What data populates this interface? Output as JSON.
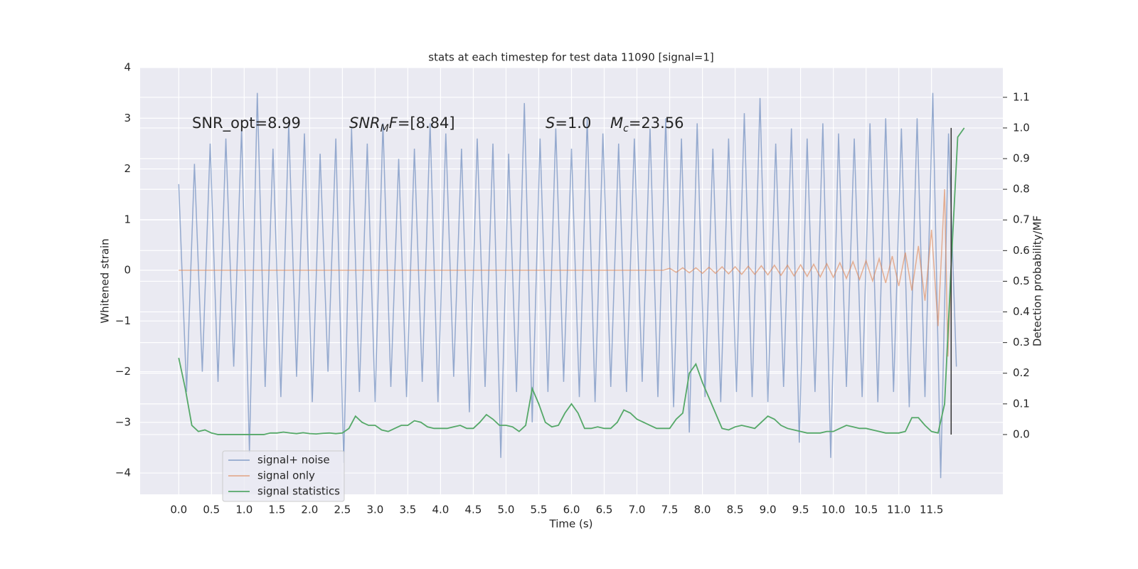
{
  "chart_data": {
    "type": "line",
    "title": "stats at each timestep for test data 11090 [signal=1]",
    "xlabel": "Time (s)",
    "ylabel": "Whitened strain",
    "y2label": "Detection probability/MF",
    "xlim": [
      -0.59,
      12.59
    ],
    "ylim": [
      -4.42,
      4
    ],
    "y2lim": [
      -0.195,
      1.197
    ],
    "xticks": [
      {
        "value": 0,
        "label": "0.0"
      },
      {
        "value": 0.5,
        "label": "0.5"
      },
      {
        "value": 1,
        "label": "1.0"
      },
      {
        "value": 1.5,
        "label": "1.5"
      },
      {
        "value": 2,
        "label": "2.0"
      },
      {
        "value": 2.5,
        "label": "2.5"
      },
      {
        "value": 3,
        "label": "3.0"
      },
      {
        "value": 3.5,
        "label": "3.5"
      },
      {
        "value": 4,
        "label": "4.0"
      },
      {
        "value": 4.5,
        "label": "4.5"
      },
      {
        "value": 5,
        "label": "5.0"
      },
      {
        "value": 5.5,
        "label": "5.5"
      },
      {
        "value": 6,
        "label": "6.0"
      },
      {
        "value": 6.5,
        "label": "6.5"
      },
      {
        "value": 7,
        "label": "7.0"
      },
      {
        "value": 7.5,
        "label": "7.5"
      },
      {
        "value": 8,
        "label": "8.0"
      },
      {
        "value": 8.5,
        "label": "8.5"
      },
      {
        "value": 9,
        "label": "9.0"
      },
      {
        "value": 9.5,
        "label": "9.5"
      },
      {
        "value": 10,
        "label": "10.0"
      },
      {
        "value": 10.5,
        "label": "10.5"
      },
      {
        "value": 11,
        "label": "11.0"
      },
      {
        "value": 11.5,
        "label": "11.5"
      }
    ],
    "yticks": [
      {
        "value": -4,
        "label": "−4"
      },
      {
        "value": -3,
        "label": "−3"
      },
      {
        "value": -2,
        "label": "−2"
      },
      {
        "value": -1,
        "label": "−1"
      },
      0,
      1,
      2,
      3,
      4
    ],
    "y2ticks": [
      {
        "value": 0,
        "label": "0.0"
      },
      {
        "value": 0.1,
        "label": "0.1"
      },
      {
        "value": 0.2,
        "label": "0.2"
      },
      {
        "value": 0.3,
        "label": "0.3"
      },
      {
        "value": 0.4,
        "label": "0.4"
      },
      {
        "value": 0.5,
        "label": "0.5"
      },
      {
        "value": 0.6,
        "label": "0.6"
      },
      {
        "value": 0.7,
        "label": "0.7"
      },
      {
        "value": 0.8,
        "label": "0.8"
      },
      {
        "value": 0.9,
        "label": "0.9"
      },
      {
        "value": 1.0,
        "label": "1.0"
      },
      {
        "value": 1.1,
        "label": "1.1"
      }
    ],
    "grid": true,
    "legend": "lower left",
    "annotations": [
      [
        "SNR_opt=8.99"
      ],
      [
        "SNR",
        "M",
        "F",
        "=[8.84]"
      ],
      [
        "S",
        "=1.0"
      ],
      [
        "M",
        "c",
        "=23.56"
      ]
    ],
    "vline": {
      "x": 11.8,
      "ymin": 0.0,
      "ymax": 1.0,
      "color": "#333333"
    },
    "series": [
      {
        "name": "signal+ noise",
        "color": "#4c72b0",
        "x": [
          0,
          0.12,
          0.24,
          0.36,
          0.48,
          0.6,
          0.72,
          0.84,
          0.96,
          1.08,
          1.2,
          1.32,
          1.44,
          1.56,
          1.68,
          1.8,
          1.92,
          2.04,
          2.16,
          2.28,
          2.4,
          2.52,
          2.64,
          2.76,
          2.88,
          3.0,
          3.12,
          3.24,
          3.36,
          3.48,
          3.6,
          3.72,
          3.84,
          3.96,
          4.08,
          4.2,
          4.32,
          4.44,
          4.56,
          4.68,
          4.8,
          4.92,
          5.04,
          5.16,
          5.28,
          5.4,
          5.52,
          5.64,
          5.76,
          5.88,
          6.0,
          6.12,
          6.24,
          6.36,
          6.48,
          6.6,
          6.72,
          6.84,
          6.96,
          7.08,
          7.2,
          7.32,
          7.44,
          7.56,
          7.68,
          7.8,
          7.92,
          8.04,
          8.16,
          8.28,
          8.4,
          8.52,
          8.64,
          8.76,
          8.88,
          9.0,
          9.12,
          9.24,
          9.36,
          9.48,
          9.6,
          9.72,
          9.84,
          9.96,
          10.08,
          10.2,
          10.32,
          10.44,
          10.56,
          10.68,
          10.8,
          10.92,
          11.04,
          11.16,
          11.28,
          11.4,
          11.52,
          11.64,
          11.76,
          11.88
        ],
        "values": [
          1.7,
          -2.4,
          2.1,
          -2.0,
          2.5,
          -2.2,
          2.6,
          -1.9,
          2.8,
          -3.6,
          3.5,
          -2.3,
          2.4,
          -2.5,
          2.9,
          -2.1,
          2.7,
          -2.6,
          2.3,
          -2.0,
          2.6,
          -3.8,
          2.8,
          -2.4,
          2.5,
          -2.6,
          2.9,
          -2.3,
          2.2,
          -2.5,
          2.4,
          -2.2,
          2.9,
          -2.6,
          2.7,
          -2.1,
          2.4,
          -2.8,
          2.6,
          -2.3,
          2.5,
          -3.7,
          2.3,
          -2.4,
          3.3,
          -3.0,
          2.6,
          -2.4,
          2.8,
          -2.2,
          2.4,
          -2.5,
          3.0,
          -2.6,
          2.7,
          -2.3,
          2.5,
          -2.4,
          2.6,
          -2.2,
          2.8,
          -2.5,
          3.0,
          -2.7,
          2.6,
          -3.2,
          2.9,
          -2.5,
          2.4,
          -2.6,
          2.6,
          -2.4,
          3.1,
          -2.5,
          3.4,
          -2.6,
          2.5,
          -2.3,
          2.8,
          -3.4,
          2.6,
          -2.4,
          2.9,
          -3.7,
          2.7,
          -2.3,
          2.6,
          -2.5,
          2.9,
          -2.6,
          3.0,
          -2.4,
          2.8,
          -2.7,
          3.0,
          -2.5,
          3.5,
          -4.1,
          2.7,
          -1.9
        ]
      },
      {
        "name": "signal only",
        "color": "#dd8452",
        "x": [
          0,
          7.4,
          7.5,
          7.6,
          7.7,
          7.8,
          7.9,
          8.0,
          8.1,
          8.2,
          8.3,
          8.4,
          8.5,
          8.6,
          8.7,
          8.8,
          8.9,
          9.0,
          9.1,
          9.2,
          9.3,
          9.4,
          9.5,
          9.6,
          9.7,
          9.8,
          9.9,
          10.0,
          10.1,
          10.2,
          10.3,
          10.4,
          10.5,
          10.6,
          10.7,
          10.8,
          10.9,
          11.0,
          11.1,
          11.2,
          11.3,
          11.4,
          11.5,
          11.6,
          11.7,
          11.75,
          11.8
        ],
        "values": [
          0,
          0,
          0.04,
          -0.04,
          0.05,
          -0.05,
          0.05,
          -0.06,
          0.06,
          -0.06,
          0.07,
          -0.07,
          0.07,
          -0.08,
          0.08,
          -0.08,
          0.09,
          -0.09,
          0.1,
          -0.1,
          0.1,
          -0.11,
          0.11,
          -0.12,
          0.12,
          -0.13,
          0.13,
          -0.14,
          0.15,
          -0.16,
          0.17,
          -0.18,
          0.19,
          -0.21,
          0.23,
          -0.25,
          0.28,
          -0.31,
          0.35,
          -0.4,
          0.48,
          -0.6,
          0.8,
          -1.1,
          1.6,
          -1.7,
          0
        ]
      },
      {
        "name": "signal statistics",
        "color": "#55a868",
        "axis": "y2",
        "x": [
          0,
          0.1,
          0.2,
          0.3,
          0.4,
          0.5,
          0.6,
          0.7,
          0.8,
          0.9,
          1.0,
          1.1,
          1.2,
          1.3,
          1.4,
          1.5,
          1.6,
          1.7,
          1.8,
          1.9,
          2.0,
          2.1,
          2.2,
          2.3,
          2.4,
          2.5,
          2.6,
          2.7,
          2.8,
          2.9,
          3.0,
          3.1,
          3.2,
          3.3,
          3.4,
          3.5,
          3.6,
          3.7,
          3.8,
          3.9,
          4.0,
          4.1,
          4.2,
          4.3,
          4.4,
          4.5,
          4.6,
          4.7,
          4.8,
          4.9,
          5.0,
          5.1,
          5.2,
          5.3,
          5.4,
          5.5,
          5.6,
          5.7,
          5.8,
          5.9,
          6.0,
          6.1,
          6.2,
          6.3,
          6.4,
          6.5,
          6.6,
          6.7,
          6.8,
          6.9,
          7.0,
          7.1,
          7.2,
          7.3,
          7.4,
          7.5,
          7.6,
          7.7,
          7.8,
          7.9,
          8.0,
          8.1,
          8.2,
          8.3,
          8.4,
          8.5,
          8.6,
          8.7,
          8.8,
          8.9,
          9.0,
          9.1,
          9.2,
          9.3,
          9.4,
          9.5,
          9.6,
          9.7,
          9.8,
          9.9,
          10.0,
          10.1,
          10.2,
          10.3,
          10.4,
          10.5,
          10.6,
          10.7,
          10.8,
          10.9,
          11.0,
          11.1,
          11.2,
          11.3,
          11.4,
          11.5,
          11.6,
          11.7,
          11.8,
          11.9,
          12.0
        ],
        "values": [
          0.25,
          0.15,
          0.03,
          0.01,
          0.015,
          0.005,
          0,
          0,
          0,
          0,
          0,
          0,
          0,
          0,
          0.005,
          0.005,
          0.008,
          0.005,
          0.003,
          0.006,
          0.003,
          0.002,
          0.004,
          0.005,
          0.003,
          0.005,
          0.02,
          0.06,
          0.04,
          0.03,
          0.03,
          0.015,
          0.01,
          0.02,
          0.03,
          0.03,
          0.045,
          0.04,
          0.025,
          0.02,
          0.02,
          0.02,
          0.025,
          0.03,
          0.02,
          0.02,
          0.04,
          0.065,
          0.05,
          0.03,
          0.03,
          0.025,
          0.01,
          0.03,
          0.15,
          0.1,
          0.04,
          0.025,
          0.03,
          0.07,
          0.1,
          0.07,
          0.02,
          0.02,
          0.025,
          0.02,
          0.02,
          0.04,
          0.08,
          0.07,
          0.05,
          0.04,
          0.03,
          0.02,
          0.02,
          0.02,
          0.05,
          0.07,
          0.2,
          0.23,
          0.17,
          0.12,
          0.07,
          0.02,
          0.015,
          0.025,
          0.03,
          0.025,
          0.02,
          0.04,
          0.06,
          0.05,
          0.03,
          0.02,
          0.015,
          0.01,
          0.005,
          0.005,
          0.005,
          0.01,
          0.01,
          0.02,
          0.03,
          0.025,
          0.02,
          0.02,
          0.015,
          0.01,
          0.005,
          0.005,
          0.005,
          0.01,
          0.055,
          0.055,
          0.03,
          0.01,
          0.005,
          0.1,
          0.55,
          0.97,
          1.0
        ]
      }
    ]
  }
}
